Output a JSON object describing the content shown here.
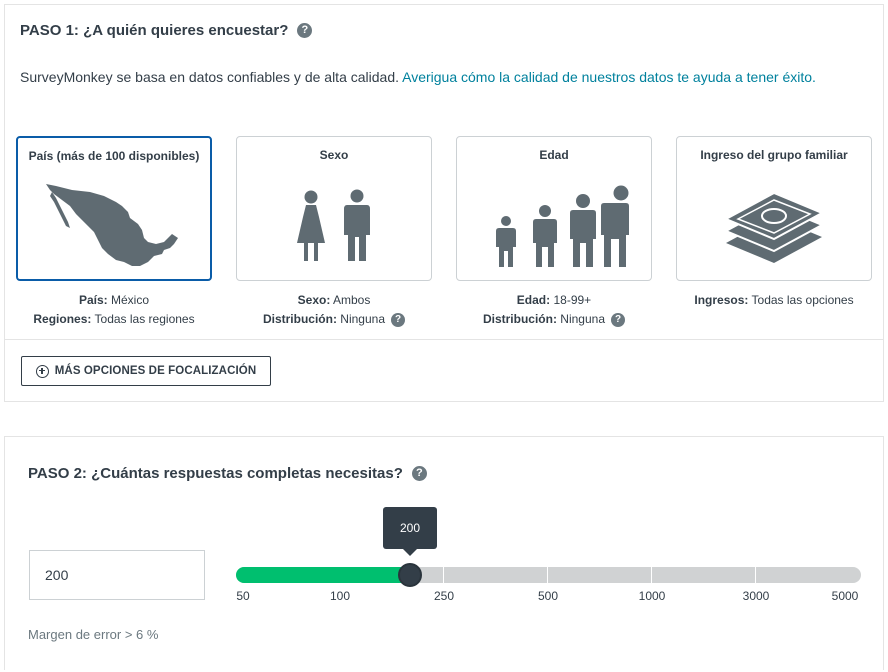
{
  "step1": {
    "title": "PASO 1: ¿A quién quieres encuestar?",
    "help_glyph": "?",
    "intro_text": "SurveyMonkey se basa en datos confiables y de alta calidad. ",
    "intro_link": "Averigua cómo la calidad de nuestros datos te ayuda a tener éxito.",
    "cards": [
      {
        "title": "País (más de 100 disponibles)",
        "icon": "mexico-map-icon",
        "selected": true
      },
      {
        "title": "Sexo",
        "icon": "female-male-icon",
        "selected": false
      },
      {
        "title": "Edad",
        "icon": "age-groups-icon",
        "selected": false
      },
      {
        "title": "Ingreso del grupo familiar",
        "icon": "money-stack-icon",
        "selected": false
      }
    ],
    "info": {
      "country_label": "País:",
      "country_value": " México",
      "regions_label": "Regiones:",
      "regions_value": " Todas las regiones",
      "sex_label": "Sexo:",
      "sex_value": " Ambos",
      "sex_dist_label": "Distribución:",
      "sex_dist_value": " Ninguna",
      "age_label": "Edad:",
      "age_value": " 18-99+",
      "age_dist_label": "Distribución:",
      "age_dist_value": " Ninguna",
      "income_label": "Ingresos:",
      "income_value": " Todas las opciones"
    },
    "more_options_label": "MÁS OPCIONES DE FOCALIZACIÓN"
  },
  "step2": {
    "title": "PASO 2: ¿Cuántas respuestas completas necesitas?",
    "help_glyph": "?",
    "responses_value": "200",
    "slider": {
      "value": 200,
      "tooltip": "200",
      "ticks": [
        "50",
        "100",
        "250",
        "500",
        "1000",
        "3000",
        "5000"
      ],
      "fill_fraction": 0.277
    },
    "margin_text": "Margen de error > 6 %"
  },
  "colors": {
    "text": "#333e48",
    "link": "#00819d",
    "selected_border": "#0a5ca8",
    "slider_fill": "#00bf6f",
    "icon_gray": "#5f6b72"
  }
}
